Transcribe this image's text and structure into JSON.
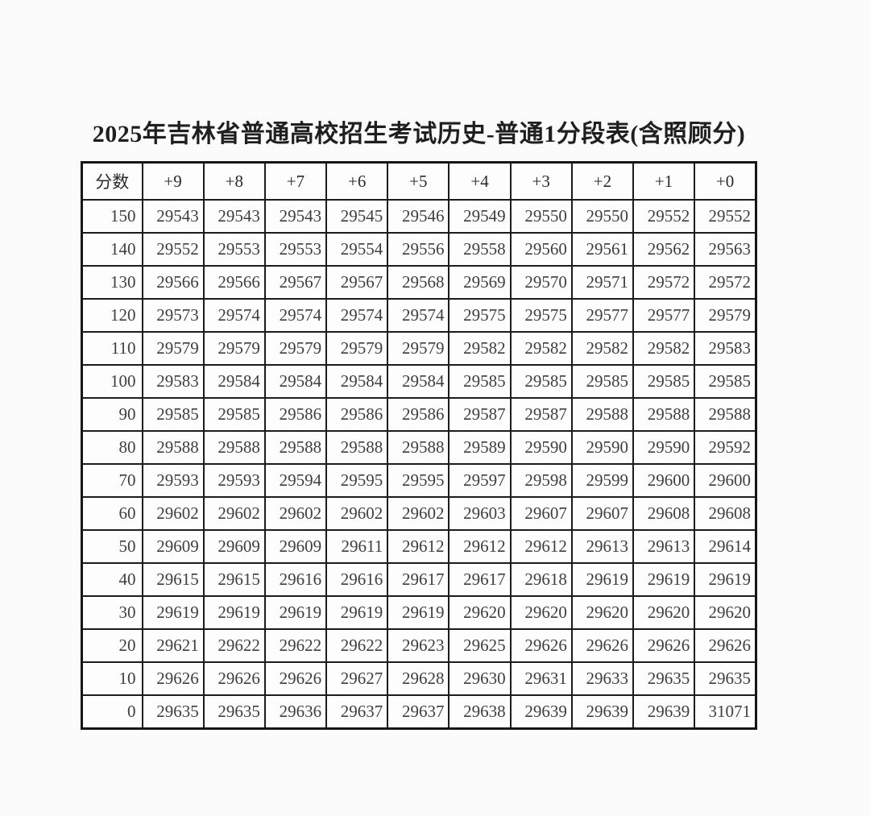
{
  "page": {
    "background": "#fbfbfb"
  },
  "colors": {
    "border": "#1c1c1c",
    "cell_text": "#3e3e3e",
    "title_text": "#1f1f1f",
    "table_background": "#fdfdfd"
  },
  "title": "2025年吉林省普通高校招生考试历史-普通1分段表(含照顾分)",
  "table": {
    "headers": [
      "分数",
      "+9",
      "+8",
      "+7",
      "+6",
      "+5",
      "+4",
      "+3",
      "+2",
      "+1",
      "+0"
    ],
    "rows": [
      {
        "score": "150",
        "values": [
          "29543",
          "29543",
          "29543",
          "29545",
          "29546",
          "29549",
          "29550",
          "29550",
          "29552",
          "29552"
        ]
      },
      {
        "score": "140",
        "values": [
          "29552",
          "29553",
          "29553",
          "29554",
          "29556",
          "29558",
          "29560",
          "29561",
          "29562",
          "29563"
        ]
      },
      {
        "score": "130",
        "values": [
          "29566",
          "29566",
          "29567",
          "29567",
          "29568",
          "29569",
          "29570",
          "29571",
          "29572",
          "29572"
        ]
      },
      {
        "score": "120",
        "values": [
          "29573",
          "29574",
          "29574",
          "29574",
          "29574",
          "29575",
          "29575",
          "29577",
          "29577",
          "29579"
        ]
      },
      {
        "score": "110",
        "values": [
          "29579",
          "29579",
          "29579",
          "29579",
          "29579",
          "29582",
          "29582",
          "29582",
          "29582",
          "29583"
        ]
      },
      {
        "score": "100",
        "values": [
          "29583",
          "29584",
          "29584",
          "29584",
          "29584",
          "29585",
          "29585",
          "29585",
          "29585",
          "29585"
        ]
      },
      {
        "score": "90",
        "values": [
          "29585",
          "29585",
          "29586",
          "29586",
          "29586",
          "29587",
          "29587",
          "29588",
          "29588",
          "29588"
        ]
      },
      {
        "score": "80",
        "values": [
          "29588",
          "29588",
          "29588",
          "29588",
          "29588",
          "29589",
          "29590",
          "29590",
          "29590",
          "29592"
        ]
      },
      {
        "score": "70",
        "values": [
          "29593",
          "29593",
          "29594",
          "29595",
          "29595",
          "29597",
          "29598",
          "29599",
          "29600",
          "29600"
        ]
      },
      {
        "score": "60",
        "values": [
          "29602",
          "29602",
          "29602",
          "29602",
          "29602",
          "29603",
          "29607",
          "29607",
          "29608",
          "29608"
        ]
      },
      {
        "score": "50",
        "values": [
          "29609",
          "29609",
          "29609",
          "29611",
          "29612",
          "29612",
          "29612",
          "29613",
          "29613",
          "29614"
        ]
      },
      {
        "score": "40",
        "values": [
          "29615",
          "29615",
          "29616",
          "29616",
          "29617",
          "29617",
          "29618",
          "29619",
          "29619",
          "29619"
        ]
      },
      {
        "score": "30",
        "values": [
          "29619",
          "29619",
          "29619",
          "29619",
          "29619",
          "29620",
          "29620",
          "29620",
          "29620",
          "29620"
        ]
      },
      {
        "score": "20",
        "values": [
          "29621",
          "29622",
          "29622",
          "29622",
          "29623",
          "29625",
          "29626",
          "29626",
          "29626",
          "29626"
        ]
      },
      {
        "score": "10",
        "values": [
          "29626",
          "29626",
          "29626",
          "29627",
          "29628",
          "29630",
          "29631",
          "29633",
          "29635",
          "29635"
        ]
      },
      {
        "score": "0",
        "values": [
          "29635",
          "29635",
          "29636",
          "29637",
          "29637",
          "29638",
          "29639",
          "29639",
          "29639",
          "31071"
        ]
      }
    ]
  }
}
